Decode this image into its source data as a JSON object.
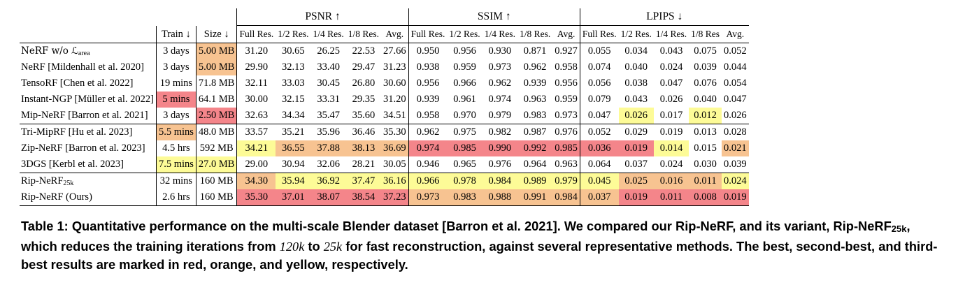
{
  "table": {
    "headers": {
      "train": "Train ↓",
      "size": "Size ↓",
      "groups": [
        "PSNR ↑",
        "SSIM ↑",
        "LPIPS ↓"
      ],
      "psnr_sub": [
        "Full Res.",
        "1/2 Res.",
        "1/4 Res.",
        "1/8 Res.",
        "Avg."
      ],
      "ssim_sub": [
        "Full Res.",
        "1/2 Res.",
        "1/4 Res.",
        "1/8 Res.",
        "Avg."
      ],
      "lpips_sub": [
        "Full Res.",
        "1/2 Res.",
        "1/4 Res.",
        "1/8 Res",
        "Avg."
      ]
    },
    "rows": [
      {
        "method": "NeRF w/o ℒ",
        "method_sub": "area",
        "train": "3 days",
        "size": "5.00 MB",
        "psnr": [
          "31.20",
          "30.65",
          "26.25",
          "22.53",
          "27.66"
        ],
        "ssim": [
          "0.950",
          "0.956",
          "0.930",
          "0.871",
          "0.927"
        ],
        "lpips": [
          "0.055",
          "0.034",
          "0.043",
          "0.075",
          "0.052"
        ]
      },
      {
        "method": "NeRF [Mildenhall et al. 2020]",
        "train": "3 days",
        "size": "5.00 MB",
        "psnr": [
          "29.90",
          "32.13",
          "33.40",
          "29.47",
          "31.23"
        ],
        "ssim": [
          "0.938",
          "0.959",
          "0.973",
          "0.962",
          "0.958"
        ],
        "lpips": [
          "0.074",
          "0.040",
          "0.024",
          "0.039",
          "0.044"
        ]
      },
      {
        "method": "TensoRF [Chen et al. 2022]",
        "train": "19 mins",
        "size": "71.8 MB",
        "psnr": [
          "32.11",
          "33.03",
          "30.45",
          "26.80",
          "30.60"
        ],
        "ssim": [
          "0.956",
          "0.966",
          "0.962",
          "0.939",
          "0.956"
        ],
        "lpips": [
          "0.056",
          "0.038",
          "0.047",
          "0.076",
          "0.054"
        ]
      },
      {
        "method": "Instant-NGP [Müller et al. 2022]",
        "train": "5 mins",
        "size": "64.1 MB",
        "psnr": [
          "30.00",
          "32.15",
          "33.31",
          "29.35",
          "31.20"
        ],
        "ssim": [
          "0.939",
          "0.961",
          "0.974",
          "0.963",
          "0.959"
        ],
        "lpips": [
          "0.079",
          "0.043",
          "0.026",
          "0.040",
          "0.047"
        ]
      },
      {
        "method": "Mip-NeRF [Barron et al. 2021]",
        "train": "3 days",
        "size": "2.50 MB",
        "psnr": [
          "32.63",
          "34.34",
          "35.47",
          "35.60",
          "34.51"
        ],
        "ssim": [
          "0.958",
          "0.970",
          "0.979",
          "0.983",
          "0.973"
        ],
        "lpips": [
          "0.047",
          "0.026",
          "0.017",
          "0.012",
          "0.026"
        ]
      },
      {
        "method": "Tri-MipRF [Hu et al. 2023]",
        "train": "5.5 mins",
        "size": "48.0 MB",
        "psnr": [
          "33.57",
          "35.21",
          "35.96",
          "36.46",
          "35.30"
        ],
        "ssim": [
          "0.962",
          "0.975",
          "0.982",
          "0.987",
          "0.976"
        ],
        "lpips": [
          "0.052",
          "0.029",
          "0.019",
          "0.013",
          "0.028"
        ]
      },
      {
        "method": "Zip-NeRF [Barron et al. 2023]",
        "train": "4.5 hrs",
        "size": "592 MB",
        "psnr": [
          "34.21",
          "36.55",
          "37.88",
          "38.13",
          "36.69"
        ],
        "ssim": [
          "0.974",
          "0.985",
          "0.990",
          "0.992",
          "0.985"
        ],
        "lpips": [
          "0.036",
          "0.019",
          "0.014",
          "0.015",
          "0.021"
        ]
      },
      {
        "method": "3DGS [Kerbl et al. 2023]",
        "train": "7.5 mins",
        "size": "27.0 MB",
        "psnr": [
          "29.00",
          "30.94",
          "32.06",
          "28.21",
          "30.05"
        ],
        "ssim": [
          "0.946",
          "0.965",
          "0.976",
          "0.964",
          "0.963"
        ],
        "lpips": [
          "0.064",
          "0.037",
          "0.024",
          "0.030",
          "0.039"
        ]
      },
      {
        "method": "Rip-NeRF",
        "method_sub": "25k",
        "train": "32 mins",
        "size": "160 MB",
        "psnr": [
          "34.30",
          "35.94",
          "36.92",
          "37.47",
          "36.16"
        ],
        "ssim": [
          "0.966",
          "0.978",
          "0.984",
          "0.989",
          "0.979"
        ],
        "lpips": [
          "0.045",
          "0.025",
          "0.016",
          "0.011",
          "0.024"
        ]
      },
      {
        "method": "Rip-NeRF (Ours)",
        "train": "2.6 hrs",
        "size": "160 MB",
        "psnr": [
          "35.30",
          "37.01",
          "38.07",
          "38.54",
          "37.23"
        ],
        "ssim": [
          "0.973",
          "0.983",
          "0.988",
          "0.991",
          "0.984"
        ],
        "lpips": [
          "0.037",
          "0.019",
          "0.011",
          "0.008",
          "0.019"
        ]
      }
    ]
  },
  "caption": {
    "label": "Table 1:",
    "text1": "Quantitative performance on the multi-scale Blender dataset [Barron et al. 2021]. We compared our Rip-NeRF, and its variant, Rip-NeRF",
    "sub": "25k",
    "text2": ", which reduces the training iterations from",
    "num1": "120k",
    "text3": "to",
    "num2": "25k",
    "text4": "for fast reconstruction, against several representative methods. The best, second-best, and third-best results are marked in red, orange, and yellow, respectively."
  },
  "colors": {
    "best": "#f4858a",
    "second": "#f7c391",
    "third": "#fdfb97"
  }
}
